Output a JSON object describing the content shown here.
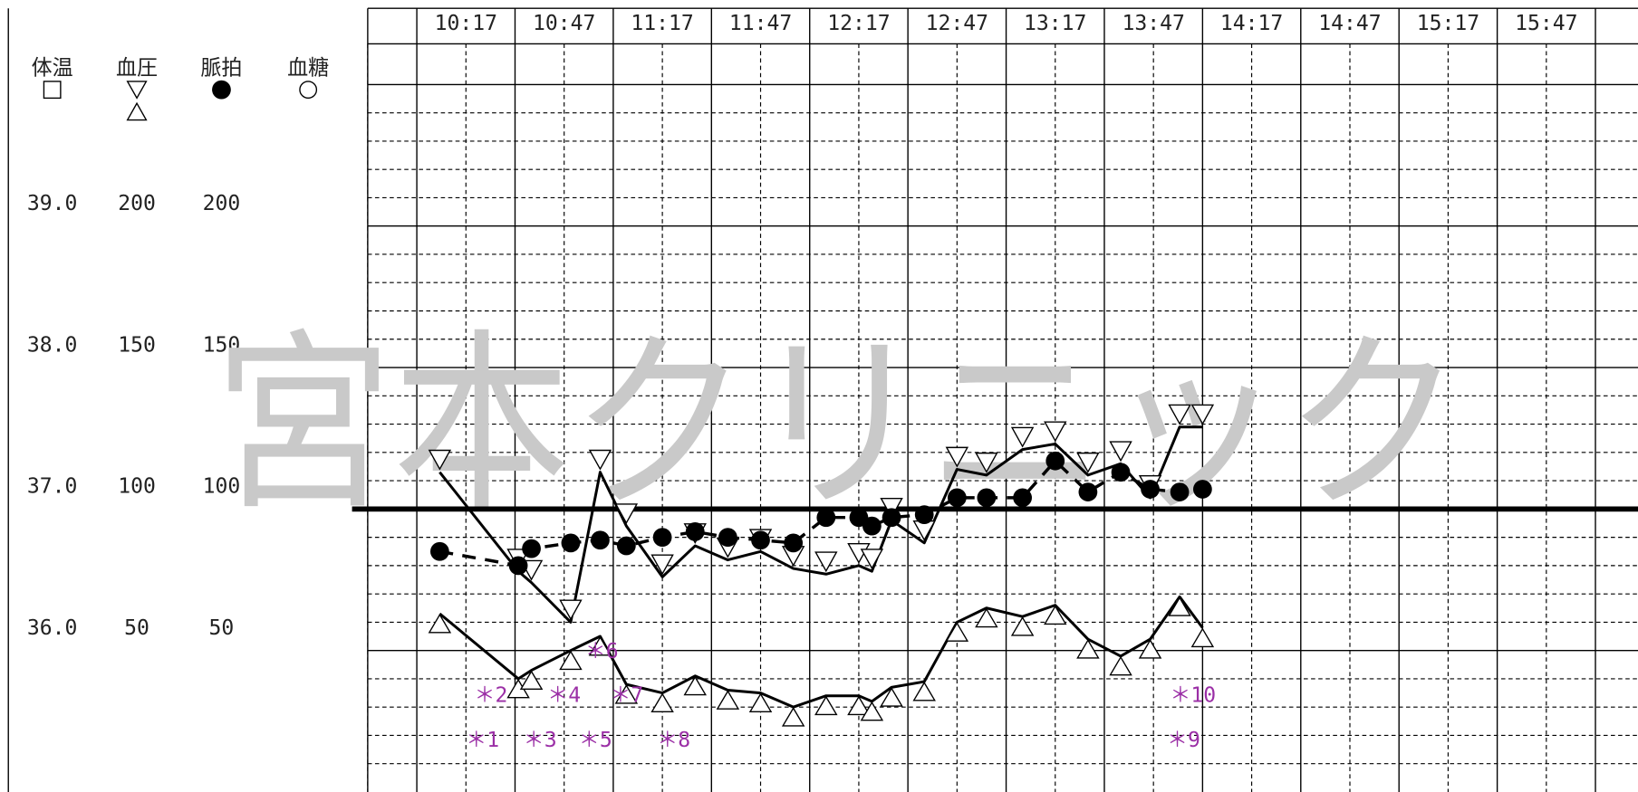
{
  "chart_data": {
    "type": "line",
    "watermark": "宮本クリニック",
    "x": [
      "10:24",
      "10:48",
      "10:52",
      "11:04",
      "11:13",
      "11:21",
      "11:32",
      "11:42",
      "11:52",
      "12:02",
      "12:12",
      "12:22",
      "12:32",
      "12:36",
      "12:42",
      "12:52",
      "13:02",
      "13:11",
      "13:22",
      "13:32",
      "13:42",
      "13:52",
      "14:01",
      "14:10",
      "14:17"
    ],
    "xlim": [
      "10:02",
      "16:30"
    ],
    "xticks": [
      "10:17",
      "10:47",
      "11:17",
      "11:47",
      "12:17",
      "12:47",
      "13:17",
      "13:47",
      "14:17",
      "14:47",
      "15:17",
      "15:47"
    ],
    "ylim": [
      0,
      250
    ],
    "yticks": [
      50,
      100,
      150,
      200
    ],
    "pulse_ticks": [
      50,
      100,
      150,
      200
    ],
    "temp_lim": [
      35,
      40
    ],
    "temp_ticks": [
      {
        "value": 36,
        "label": "36.0"
      },
      {
        "value": 37,
        "label": "37.0"
      },
      {
        "value": 38,
        "label": "38.0"
      },
      {
        "value": 39,
        "label": "39.0"
      }
    ],
    "ref_line": 100,
    "grid": true,
    "series": [
      {
        "name": "体温",
        "marker": "square",
        "color": "#000000",
        "values": [
          null,
          null,
          null,
          null,
          null,
          null,
          null,
          null,
          null,
          null,
          null,
          null,
          null,
          null,
          null,
          null,
          null,
          null,
          null,
          null,
          null,
          null,
          null,
          null,
          null
        ]
      },
      {
        "name": "血圧",
        "marker": "triangle",
        "color": "#000000",
        "line": "solid",
        "values": [
          113,
          78,
          74,
          60,
          113,
          94,
          76,
          87,
          82,
          85,
          79,
          77,
          80,
          78,
          96,
          88,
          114,
          112,
          121,
          123,
          112,
          116,
          104,
          129,
          129
        ],
        "lows": [
          63,
          40,
          43,
          50,
          55,
          38,
          35,
          41,
          36,
          35,
          30,
          34,
          34,
          32,
          37,
          39,
          60,
          65,
          62,
          66,
          54,
          48,
          54,
          69,
          58
        ]
      },
      {
        "name": "脈拍",
        "marker": "dot",
        "color": "#000000",
        "line": "dashed",
        "values": [
          85,
          80,
          86,
          88,
          89,
          87,
          90,
          92,
          90,
          89,
          88,
          97,
          97,
          94,
          97,
          98,
          104,
          104,
          104,
          117,
          106,
          113,
          107,
          106,
          107
        ]
      },
      {
        "name": "血糖",
        "marker": "circle",
        "color": "#000000",
        "values": [
          null,
          null,
          null,
          null,
          null,
          null,
          null,
          null,
          null,
          null,
          null,
          null,
          null,
          null,
          null,
          null,
          null,
          null,
          null,
          null,
          null,
          null,
          null,
          null,
          null
        ]
      }
    ],
    "annotations": [
      "＊1",
      "＊2",
      "＊3",
      "＊4",
      "＊5",
      "＊6",
      "＊7",
      "＊8",
      "＊9",
      "＊10"
    ]
  }
}
